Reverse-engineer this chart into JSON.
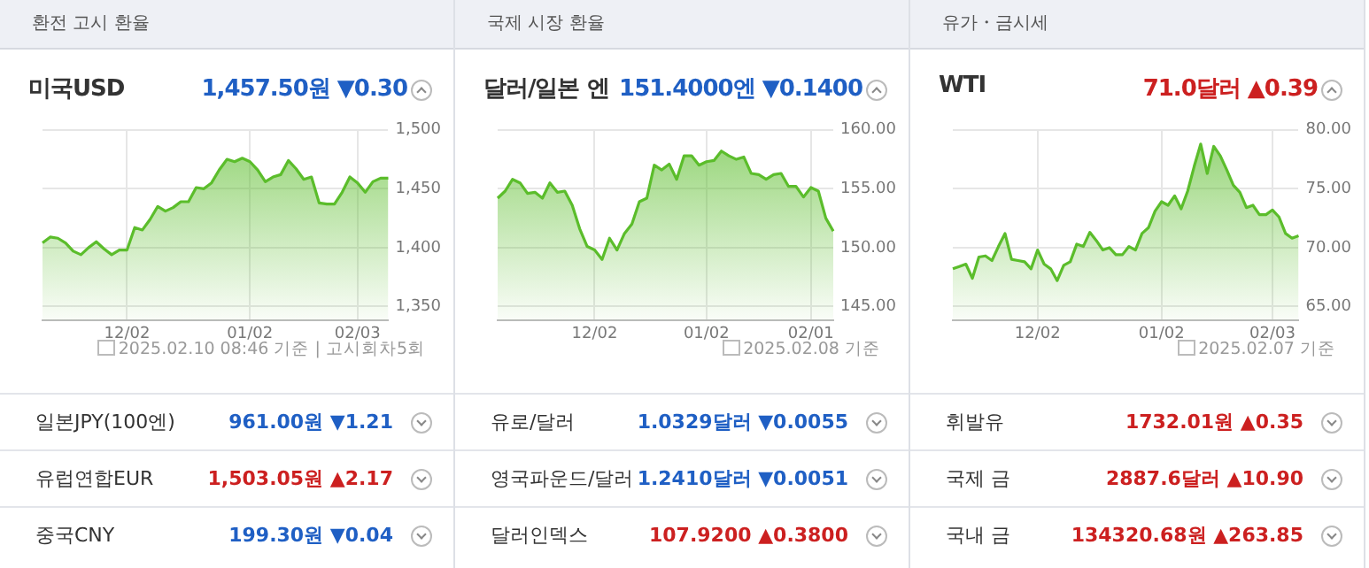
{
  "chart_data": [
    {
      "type": "area",
      "title": "환전 고시 환율",
      "subtitle": "미국USD",
      "color": "#5bbd2b",
      "grid": true,
      "categories": [
        null,
        null,
        null,
        null,
        null,
        null,
        null,
        null,
        null,
        null,
        null,
        "12/02",
        null,
        null,
        null,
        null,
        null,
        null,
        null,
        null,
        null,
        null,
        null,
        null,
        null,
        null,
        null,
        "01/02",
        null,
        null,
        null,
        null,
        null,
        null,
        null,
        null,
        null,
        null,
        null,
        null,
        null,
        "02/03",
        null,
        null,
        null,
        null
      ],
      "values": [
        1404,
        1409,
        1408,
        1404,
        1397,
        1394,
        1400,
        1405,
        1399,
        1394,
        1398,
        1398,
        1417,
        1415,
        1424,
        1435,
        1431,
        1434,
        1439,
        1439,
        1451,
        1450,
        1455,
        1466,
        1475,
        1473,
        1476,
        1473,
        1466,
        1456,
        1460,
        1462,
        1474,
        1467,
        1458,
        1460,
        1438,
        1437,
        1437,
        1447,
        1460,
        1455,
        1447,
        1456,
        1459,
        1459
      ],
      "ylim": [
        1338,
        1500
      ],
      "yticks": [
        {
          "value": 1350,
          "label": "1,350"
        },
        {
          "value": 1400,
          "label": "1,400"
        },
        {
          "value": 1450,
          "label": "1,450"
        },
        {
          "value": 1500,
          "label": "1,500"
        }
      ],
      "annotations": [
        "1,457.50원 ▼0.30",
        "2025.02.10 08:46 기준 | 고시회차5회",
        "일본JPY(100엔)",
        "961.00원 ▼1.21",
        "유럽연합EUR",
        "1,503.05원 ▲2.17",
        "중국CNY",
        "199.30원 ▼0.04"
      ]
    },
    {
      "type": "area",
      "title": "국제 시장 환율",
      "subtitle": "달러/일본 엔",
      "color": "#5bbd2b",
      "grid": true,
      "categories": [
        null,
        null,
        null,
        null,
        null,
        null,
        null,
        null,
        null,
        null,
        null,
        null,
        null,
        "12/02",
        null,
        null,
        null,
        null,
        null,
        null,
        null,
        null,
        null,
        null,
        null,
        null,
        null,
        null,
        "01/02",
        null,
        null,
        null,
        null,
        null,
        null,
        null,
        null,
        null,
        null,
        null,
        null,
        null,
        "02/01",
        null,
        null,
        null
      ],
      "values": [
        154.2,
        154.8,
        155.8,
        155.5,
        154.6,
        154.7,
        154.2,
        155.5,
        154.7,
        154.8,
        153.6,
        151.6,
        150.1,
        149.8,
        149.0,
        150.8,
        149.8,
        151.2,
        152.0,
        153.9,
        154.2,
        157.0,
        156.6,
        157.1,
        155.8,
        157.8,
        157.8,
        157.0,
        157.3,
        157.4,
        158.2,
        157.8,
        157.5,
        157.7,
        156.3,
        156.2,
        155.8,
        156.2,
        156.3,
        155.2,
        155.2,
        154.3,
        155.1,
        154.8,
        152.5,
        151.4
      ],
      "ylim": [
        143.8,
        160
      ],
      "yticks": [
        {
          "value": 145,
          "label": "145.00"
        },
        {
          "value": 150,
          "label": "150.00"
        },
        {
          "value": 155,
          "label": "155.00"
        },
        {
          "value": 160,
          "label": "160.00"
        }
      ],
      "annotations": [
        "151.4000엔 ▼0.1400",
        "2025.02.08 기준",
        "유로/달러",
        "1.0329달러 ▼0.0055",
        "영국파운드/달러",
        "1.2410달러 ▼0.0051",
        "달러인덱스",
        "107.9200 ▲0.3800"
      ]
    },
    {
      "type": "area",
      "title": "유가・금시세",
      "subtitle": "WTI",
      "color": "#5bbd2b",
      "grid": true,
      "categories": [
        null,
        null,
        null,
        null,
        null,
        null,
        null,
        null,
        null,
        null,
        null,
        null,
        null,
        "12/02",
        null,
        null,
        null,
        null,
        null,
        null,
        null,
        null,
        null,
        null,
        null,
        null,
        null,
        null,
        null,
        null,
        null,
        null,
        "01/02",
        null,
        null,
        null,
        null,
        null,
        null,
        null,
        null,
        null,
        null,
        null,
        null,
        null,
        null,
        null,
        null,
        "02/03",
        null,
        null,
        null,
        null
      ],
      "values": [
        68.2,
        68.4,
        68.6,
        67.4,
        69.2,
        69.3,
        68.9,
        70.1,
        71.2,
        69.0,
        68.9,
        68.8,
        68.2,
        69.8,
        68.6,
        68.2,
        67.2,
        68.5,
        68.8,
        70.3,
        70.1,
        71.3,
        70.6,
        69.8,
        70.0,
        69.4,
        69.4,
        70.1,
        69.8,
        71.2,
        71.7,
        73.1,
        73.9,
        73.6,
        74.4,
        73.3,
        74.8,
        76.9,
        78.8,
        76.3,
        78.6,
        77.8,
        76.6,
        75.3,
        74.7,
        73.4,
        73.6,
        72.8,
        72.8,
        73.2,
        72.6,
        71.2,
        70.8,
        71.0
      ],
      "ylim": [
        63.8,
        80
      ],
      "yticks": [
        {
          "value": 65,
          "label": "65.00"
        },
        {
          "value": 70,
          "label": "70.00"
        },
        {
          "value": 75,
          "label": "75.00"
        },
        {
          "value": 80,
          "label": "80.00"
        }
      ],
      "annotations": [
        "71.0달러 ▲0.39",
        "2025.02.07 기준",
        "휘발유",
        "1732.01원 ▲0.35",
        "국제 금",
        "2887.6달러 ▲10.90",
        "국내 금",
        "134320.68원 ▲263.85"
      ]
    }
  ]
}
